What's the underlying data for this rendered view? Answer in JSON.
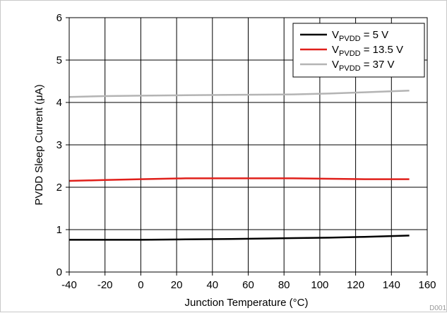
{
  "chart_data": {
    "type": "line",
    "xlabel": "Junction Temperature (°C)",
    "ylabel": "PVDD Sleep Current (μA)",
    "xlim": [
      -40,
      160
    ],
    "ylim": [
      0,
      6
    ],
    "xticks": [
      -40,
      -20,
      0,
      20,
      40,
      60,
      80,
      100,
      120,
      140,
      160
    ],
    "yticks": [
      0,
      1,
      2,
      3,
      4,
      5,
      6
    ],
    "grid": true,
    "legend_position": "top-right",
    "x": [
      -40,
      -20,
      0,
      25,
      50,
      85,
      105,
      125,
      150
    ],
    "series": [
      {
        "name": "VPVDD = 5 V",
        "legend_main": "V",
        "legend_sub": "PVDD",
        "legend_rest": " = 5 V",
        "color": "#000000",
        "values": [
          0.76,
          0.76,
          0.76,
          0.77,
          0.78,
          0.8,
          0.81,
          0.83,
          0.86
        ]
      },
      {
        "name": "VPVDD = 13.5 V",
        "legend_main": "V",
        "legend_sub": "PVDD",
        "legend_rest": " = 13.5 V",
        "color": "#e0201b",
        "values": [
          2.15,
          2.17,
          2.19,
          2.21,
          2.21,
          2.21,
          2.2,
          2.19,
          2.19
        ]
      },
      {
        "name": "VPVDD = 37 V",
        "legend_main": "V",
        "legend_sub": "PVDD",
        "legend_rest": " = 37 V",
        "color": "#b4b4b4",
        "values": [
          4.13,
          4.15,
          4.16,
          4.17,
          4.18,
          4.19,
          4.21,
          4.24,
          4.28
        ]
      }
    ]
  },
  "figure_id": "D001"
}
